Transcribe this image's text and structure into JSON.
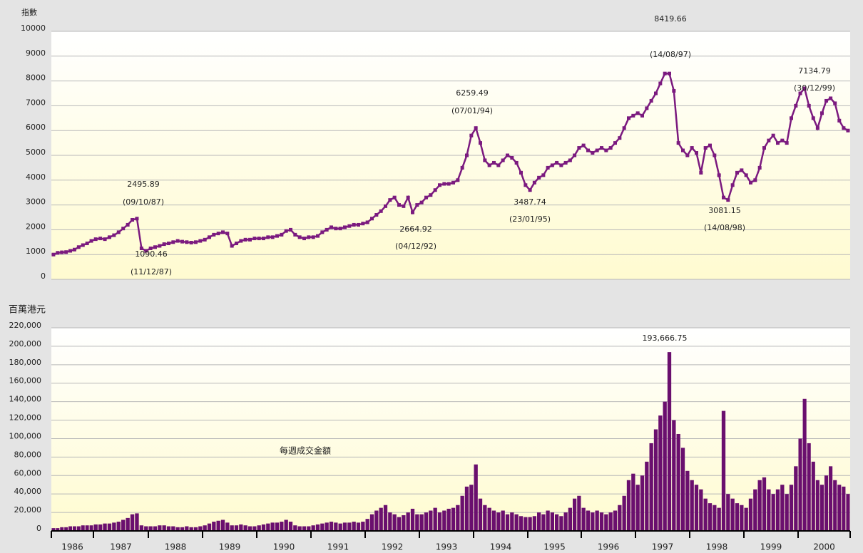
{
  "chart_data": {
    "type": "line_and_bar",
    "index_axis_label": "指數",
    "turnover_axis_label": "百萬港元",
    "turnover_title": "每週成交金額",
    "ylim": [
      0,
      10000
    ],
    "yticks": [
      0,
      1000,
      2000,
      3000,
      4000,
      5000,
      6000,
      7000,
      8000,
      9000,
      10000
    ],
    "y2lim": [
      0,
      220000
    ],
    "y2ticks": [
      0,
      {
        "value": 20000,
        "label": "20,000"
      },
      {
        "value": 40000,
        "label": "40,000"
      },
      {
        "value": 60000,
        "label": "60,000"
      },
      {
        "value": 80000,
        "label": "80,000"
      },
      {
        "value": 100000,
        "label": "100,000"
      },
      {
        "value": 120000,
        "label": "120,000"
      },
      {
        "value": 140000,
        "label": "140,000"
      },
      {
        "value": 160000,
        "label": "160,000"
      },
      {
        "value": 180000,
        "label": "180,000"
      },
      {
        "value": 200000,
        "label": "200,000"
      },
      {
        "value": 220000,
        "label": "220,000"
      }
    ],
    "grid": true,
    "index_color": "#7b1a7f",
    "turnover_color": "#6a0f6e",
    "years": [
      {
        "year": "1986",
        "index": [
          1000,
          1070,
          1090,
          1100,
          1150,
          1200,
          1300,
          1380,
          1450,
          1550
        ],
        "turnover": [
          3000,
          3000,
          4000,
          4000,
          5000,
          5000,
          5000,
          6000,
          6000,
          6000
        ]
      },
      {
        "year": "1987",
        "index": [
          1620,
          1650,
          1620,
          1700,
          1780,
          1900,
          2050,
          2200,
          2400,
          2450,
          1250,
          1150
        ],
        "turnover": [
          7000,
          7000,
          8000,
          8000,
          9000,
          10000,
          12000,
          14000,
          18000,
          19000,
          6000,
          5000
        ]
      },
      {
        "year": "1988",
        "index": [
          1250,
          1300,
          1350,
          1420,
          1450,
          1500,
          1550,
          1520,
          1500,
          1480,
          1500,
          1550
        ],
        "turnover": [
          5000,
          5000,
          6000,
          6000,
          5000,
          5000,
          4000,
          4000,
          5000,
          4000,
          4000,
          5000
        ]
      },
      {
        "year": "1989",
        "index": [
          1600,
          1700,
          1800,
          1850,
          1900,
          1850,
          1350,
          1450,
          1550,
          1600,
          1600,
          1650
        ],
        "turnover": [
          6000,
          8000,
          10000,
          11000,
          12000,
          9000,
          6000,
          6000,
          7000,
          6000,
          5000,
          5000
        ]
      },
      {
        "year": "1990",
        "index": [
          1650,
          1650,
          1700,
          1700,
          1750,
          1800,
          1950,
          2000,
          1800,
          1700,
          1650,
          1700
        ],
        "turnover": [
          6000,
          7000,
          8000,
          9000,
          9000,
          10000,
          12000,
          10000,
          6000,
          5000,
          5000,
          5000
        ]
      },
      {
        "year": "1991",
        "index": [
          1700,
          1750,
          1900,
          2000,
          2100,
          2050,
          2050,
          2100,
          2150,
          2200,
          2200,
          2250
        ],
        "turnover": [
          6000,
          7000,
          8000,
          9000,
          10000,
          9000,
          8000,
          9000,
          9000,
          10000,
          9000,
          10000
        ]
      },
      {
        "year": "1992",
        "index": [
          2300,
          2450,
          2600,
          2750,
          2950,
          3200,
          3300,
          3000,
          2950,
          3300,
          2700,
          3000
        ],
        "turnover": [
          13000,
          18000,
          22000,
          25000,
          28000,
          20000,
          18000,
          15000,
          17000,
          20000,
          24000,
          18000
        ]
      },
      {
        "year": "1993",
        "index": [
          3100,
          3300,
          3400,
          3600,
          3800,
          3850,
          3850,
          3900,
          4000,
          4500,
          5000,
          5800
        ],
        "turnover": [
          18000,
          20000,
          22000,
          25000,
          20000,
          22000,
          24000,
          25000,
          28000,
          38000,
          48000,
          50000
        ]
      },
      {
        "year": "1994",
        "index": [
          6100,
          5500,
          4800,
          4600,
          4700,
          4600,
          4800,
          5000,
          4900,
          4700,
          4300,
          3800
        ],
        "turnover": [
          72000,
          35000,
          28000,
          25000,
          22000,
          20000,
          22000,
          18000,
          20000,
          18000,
          16000,
          15000
        ]
      },
      {
        "year": "1995",
        "index": [
          3600,
          3900,
          4100,
          4200,
          4500,
          4600,
          4700,
          4600,
          4700,
          4800,
          5000,
          5300
        ],
        "turnover": [
          15000,
          16000,
          20000,
          18000,
          22000,
          20000,
          18000,
          16000,
          20000,
          25000,
          35000,
          38000
        ]
      },
      {
        "year": "1996",
        "index": [
          5400,
          5200,
          5100,
          5200,
          5300,
          5200,
          5300,
          5500,
          5700,
          6100,
          6500,
          6600
        ],
        "turnover": [
          25000,
          22000,
          20000,
          22000,
          20000,
          18000,
          20000,
          22000,
          28000,
          38000,
          55000,
          62000
        ]
      },
      {
        "year": "1997",
        "index": [
          6700,
          6600,
          6900,
          7200,
          7500,
          7900,
          8300,
          8300,
          7600,
          5500,
          5200,
          5000
        ],
        "turnover": [
          50000,
          60000,
          75000,
          95000,
          110000,
          125000,
          140000,
          193666.75,
          120000,
          105000,
          90000,
          65000
        ]
      },
      {
        "year": "1998",
        "index": [
          5300,
          5100,
          4300,
          5300,
          5400,
          5000,
          4200,
          3300,
          3200,
          3800,
          4300,
          4400
        ],
        "turnover": [
          55000,
          50000,
          45000,
          35000,
          30000,
          28000,
          25000,
          130000,
          40000,
          35000,
          30000,
          28000
        ]
      },
      {
        "year": "1999",
        "index": [
          4200,
          3900,
          4000,
          4500,
          5300,
          5600,
          5800,
          5500,
          5600,
          5500,
          6500,
          7000
        ],
        "turnover": [
          25000,
          35000,
          45000,
          55000,
          58000,
          45000,
          40000,
          45000,
          50000,
          40000,
          50000,
          70000
        ]
      },
      {
        "year": "2000",
        "index": [
          7500,
          7700,
          7000,
          6500,
          6100,
          6700,
          7200,
          7300,
          7100,
          6400,
          6100,
          6000
        ],
        "turnover": [
          100000,
          143000,
          95000,
          75000,
          55000,
          50000,
          60000,
          70000,
          55000,
          50000,
          48000,
          40000
        ]
      }
    ],
    "index_annotations": [
      {
        "label": "2495.89",
        "date": "(09/10/87)"
      },
      {
        "label": "1090.46",
        "date": "(11/12/87)"
      },
      {
        "label": "2664.92",
        "date": "(04/12/92)"
      },
      {
        "label": "6259.49",
        "date": "(07/01/94)"
      },
      {
        "label": "3487.74",
        "date": "(23/01/95)"
      },
      {
        "label": "8419.66",
        "date": "(14/08/97)"
      },
      {
        "label": "3081.15",
        "date": "(14/08/98)"
      },
      {
        "label": "7134.79",
        "date": "(30/12/99)"
      }
    ],
    "turnover_annotation": "193,666.75"
  }
}
